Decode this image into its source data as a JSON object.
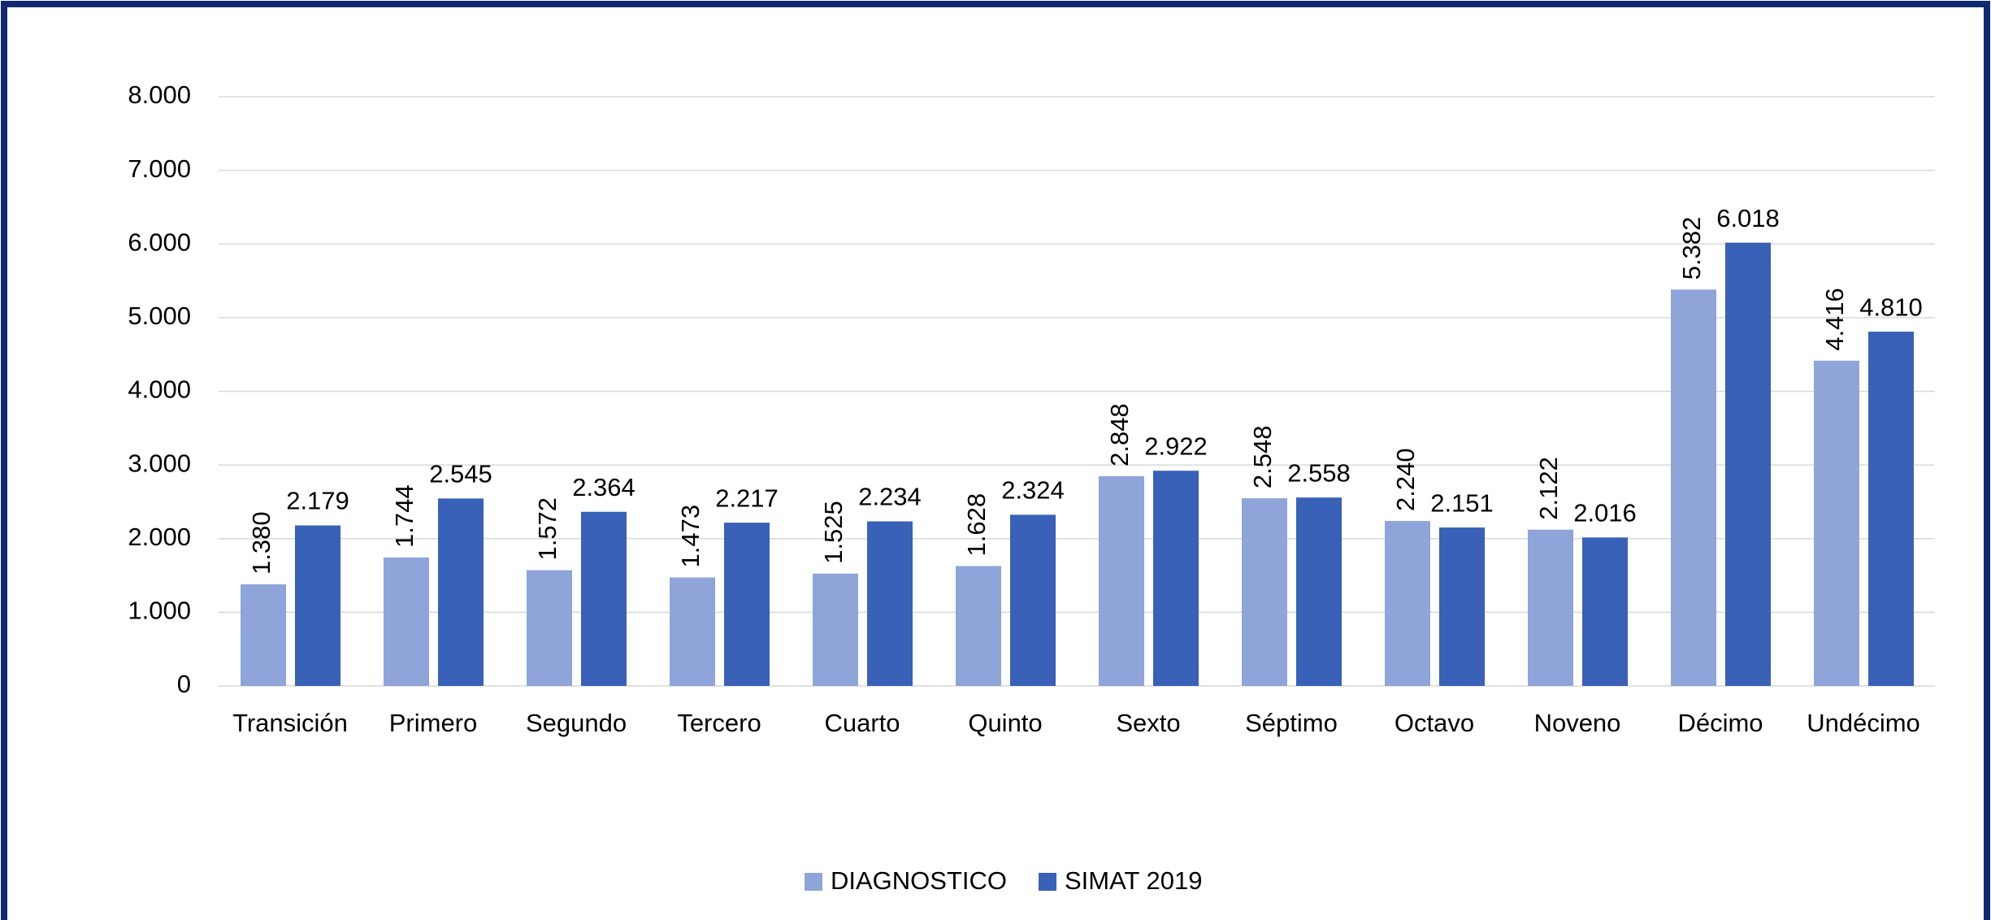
{
  "chart_data": {
    "type": "bar",
    "categories": [
      "Transición",
      "Primero",
      "Segundo",
      "Tercero",
      "Cuarto",
      "Quinto",
      "Sexto",
      "Séptimo",
      "Octavo",
      "Noveno",
      "Décimo",
      "Undécimo"
    ],
    "series": [
      {
        "name": "DIAGNOSTICO",
        "color": "#8fa5d9",
        "values": [
          1380,
          1744,
          1572,
          1473,
          1525,
          1628,
          2848,
          2548,
          2240,
          2122,
          5382,
          4416
        ],
        "value_labels": [
          "1.380",
          "1.744",
          "1.572",
          "1.473",
          "1.525",
          "1.628",
          "2.848",
          "2.548",
          "2.240",
          "2.122",
          "5.382",
          "4.416"
        ]
      },
      {
        "name": "SIMAT 2019",
        "color": "#3861b7",
        "values": [
          2179,
          2545,
          2364,
          2217,
          2234,
          2324,
          2922,
          2558,
          2151,
          2016,
          6018,
          4810
        ],
        "value_labels": [
          "2.179",
          "2.545",
          "2.364",
          "2.217",
          "2.234",
          "2.324",
          "2.922",
          "2.558",
          "2.151",
          "2.016",
          "6.018",
          "4.810"
        ]
      }
    ],
    "ylim": [
      0,
      8000
    ],
    "yticks": [
      0,
      {
        "value": 1000,
        "label": "1.000"
      },
      {
        "value": 2000,
        "label": "2.000"
      },
      {
        "value": 3000,
        "label": "3.000"
      },
      {
        "value": 4000,
        "label": "4.000"
      },
      {
        "value": 5000,
        "label": "5.000"
      },
      {
        "value": 6000,
        "label": "6.000"
      },
      {
        "value": 7000,
        "label": "7.000"
      },
      {
        "value": 8000,
        "label": "8.000"
      }
    ],
    "grid": true,
    "legend": "bottom"
  }
}
